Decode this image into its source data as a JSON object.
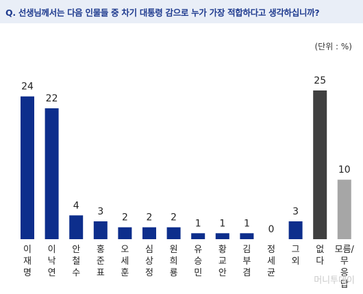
{
  "question": "Q. 선생님께서는 다음 인물들 중 차기 대통령 감으로 누가 가장 적합하다고 생각하십니까?",
  "unit_label": "(단위 : %)",
  "watermark": "머니투데이",
  "colors": {
    "primary": "#0d2e8c",
    "dark": "#404040",
    "light": "#a6a6a6",
    "header_bg": "#e9eef7",
    "title": "#1f3b8f"
  },
  "chart_data": {
    "type": "bar",
    "title": "",
    "xlabel": "",
    "ylabel": "",
    "ylim": [
      0,
      25
    ],
    "grid": false,
    "categories": [
      "이재명",
      "이낙연",
      "안철수",
      "홍준표",
      "오세훈",
      "심상정",
      "원희룡",
      "유승민",
      "황교안",
      "김부겸",
      "정세균",
      "그외",
      "없다",
      "모름/무응답"
    ],
    "category_lines": [
      [
        "이",
        "재",
        "명"
      ],
      [
        "이",
        "낙",
        "연"
      ],
      [
        "안",
        "철",
        "수"
      ],
      [
        "홍",
        "준",
        "표"
      ],
      [
        "오",
        "세",
        "훈"
      ],
      [
        "심",
        "상",
        "정"
      ],
      [
        "원",
        "희",
        "룡"
      ],
      [
        "유",
        "승",
        "민"
      ],
      [
        "황",
        "교",
        "안"
      ],
      [
        "김",
        "부",
        "겸"
      ],
      [
        "정",
        "세",
        "균"
      ],
      [
        "그",
        "외"
      ],
      [
        "없",
        "다"
      ],
      [
        "모름/",
        "무",
        "응",
        "답"
      ]
    ],
    "values": [
      24,
      22,
      4,
      3,
      2,
      2,
      2,
      1,
      1,
      1,
      0,
      3,
      25,
      10
    ],
    "bar_colors": [
      "#0d2e8c",
      "#0d2e8c",
      "#0d2e8c",
      "#0d2e8c",
      "#0d2e8c",
      "#0d2e8c",
      "#0d2e8c",
      "#0d2e8c",
      "#0d2e8c",
      "#0d2e8c",
      "#0d2e8c",
      "#0d2e8c",
      "#404040",
      "#a6a6a6"
    ]
  }
}
